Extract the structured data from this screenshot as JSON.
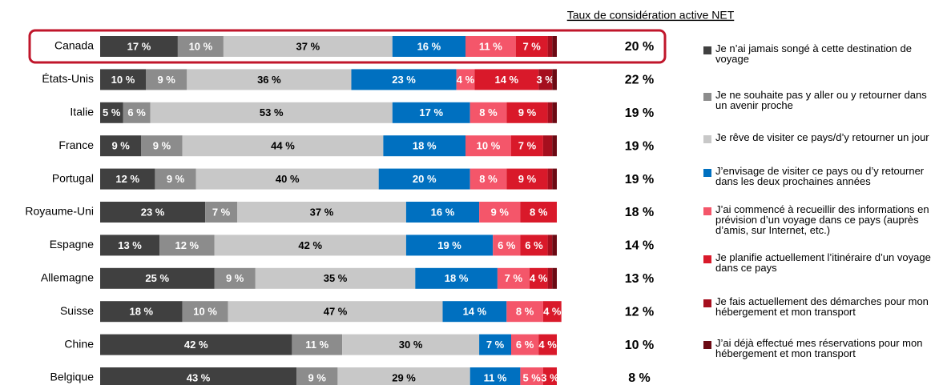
{
  "chart_data": {
    "type": "stacked-barh",
    "categories": [
      "Canada",
      "États-Unis",
      "Italie",
      "France",
      "Portugal",
      "Royaume-Uni",
      "Espagne",
      "Allemagne",
      "Suisse",
      "Chine",
      "Belgique"
    ],
    "xlim": [
      0,
      100
    ],
    "series": [
      {
        "name": "Je n’ai jamais songé à cette destination de voyage",
        "color": "#404040",
        "values": [
          17,
          10,
          5,
          9,
          12,
          23,
          13,
          25,
          18,
          42,
          43
        ],
        "value_labels": [
          "17 %",
          "10 %",
          "5 %",
          "9 %",
          "12 %",
          "23 %",
          "13 %",
          "25 %",
          "18 %",
          "42 %",
          "43 %"
        ]
      },
      {
        "name": "Je ne souhaite pas y aller ou y retourner dans un avenir proche",
        "color": "#8c8c8c",
        "values": [
          10,
          9,
          6,
          9,
          9,
          7,
          12,
          9,
          10,
          11,
          9
        ],
        "value_labels": [
          "10 %",
          "9 %",
          "6 %",
          "9 %",
          "9 %",
          "7 %",
          "12 %",
          "9 %",
          "10 %",
          "11 %",
          "9 %"
        ]
      },
      {
        "name": "Je rêve de visiter ce pays/d’y retourner un jour",
        "color": "#c8c8c8",
        "values": [
          37,
          36,
          53,
          44,
          40,
          37,
          42,
          35,
          47,
          30,
          29
        ],
        "value_labels": [
          "37 %",
          "36 %",
          "53 %",
          "44 %",
          "40 %",
          "37 %",
          "42 %",
          "35 %",
          "47 %",
          "30 %",
          "29 %"
        ]
      },
      {
        "name": "J’envisage de visiter ce pays ou d’y retourner dans les deux prochaines années",
        "color": "#0070c0",
        "values": [
          16,
          23,
          17,
          18,
          20,
          16,
          19,
          18,
          14,
          7,
          11
        ],
        "value_labels": [
          "16 %",
          "23 %",
          "17 %",
          "18 %",
          "20 %",
          "16 %",
          "19 %",
          "18 %",
          "14 %",
          "7 %",
          "11 %"
        ]
      },
      {
        "name": "J’ai commencé à recueillir des informations en prévision d’un voyage dans ce pays (auprès d’amis, sur Internet, etc.)",
        "color": "#f4566a",
        "values": [
          11,
          4,
          8,
          10,
          8,
          9,
          6,
          7,
          8,
          6,
          5
        ],
        "value_labels": [
          "11 %",
          "4 %",
          "8 %",
          "10 %",
          "8 %",
          "9 %",
          "6 %",
          "7 %",
          "8 %",
          "6 %",
          "5 %"
        ]
      },
      {
        "name": "Je planifie actuellement l’itinéraire d’un voyage dans ce pays",
        "color": "#d9192a",
        "values": [
          7,
          14,
          9,
          7,
          9,
          8,
          6,
          4,
          4,
          4,
          3
        ],
        "value_labels": [
          "7 %",
          "14 %",
          "9 %",
          "7 %",
          "9 %",
          "8 %",
          "6 %",
          "4 %",
          "4 %",
          "4 %",
          "3 %"
        ]
      },
      {
        "name": "Je fais actuellement des démarches pour mon hébergement et mon transport",
        "color": "#a50f1e",
        "values": [
          1,
          3,
          1,
          2,
          1,
          0,
          1,
          1,
          0,
          0,
          0
        ],
        "value_labels": [
          null,
          "3 %",
          null,
          null,
          null,
          null,
          null,
          null,
          null,
          null,
          null
        ]
      },
      {
        "name": "J’ai déjà effectué mes réservations pour mon hébergement et mon transport",
        "color": "#6b0a14",
        "values": [
          1,
          1,
          1,
          1,
          1,
          0,
          1,
          1,
          0,
          0,
          0
        ],
        "value_labels": [
          null,
          null,
          null,
          null,
          null,
          null,
          null,
          null,
          null,
          null,
          null
        ]
      }
    ],
    "net": {
      "title": "Taux de considération active NET",
      "values": [
        20,
        22,
        19,
        19,
        19,
        18,
        14,
        13,
        12,
        10,
        8
      ],
      "value_labels": [
        "20 %",
        "22 %",
        "19 %",
        "19 %",
        "19 %",
        "18 %",
        "14 %",
        "13 %",
        "12 %",
        "10 %",
        "8 %"
      ]
    }
  }
}
